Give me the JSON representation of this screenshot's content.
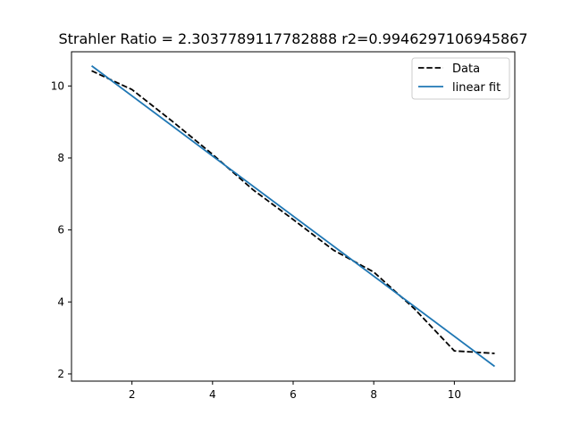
{
  "chart_data": {
    "type": "line",
    "title": "Strahler Ratio = 2.3037789117782888 r2=0.9946297106945867",
    "xlabel": "",
    "ylabel": "",
    "xlim": [
      0.5,
      11.5
    ],
    "ylim": [
      1.8,
      10.95
    ],
    "xticks": [
      2,
      4,
      6,
      8,
      10
    ],
    "yticks": [
      2,
      4,
      6,
      8,
      10
    ],
    "grid": false,
    "legend_position": "top-right",
    "series": [
      {
        "name": "Data",
        "style": "dashed",
        "color": "#000000",
        "x": [
          1,
          2,
          3,
          4,
          5,
          6,
          7,
          8,
          9,
          10,
          11
        ],
        "y": [
          10.42,
          9.9,
          9.02,
          8.1,
          7.12,
          6.29,
          5.44,
          4.83,
          3.82,
          2.64,
          2.57
        ]
      },
      {
        "name": "linear fit",
        "style": "solid",
        "color": "#1f77b4",
        "x": [
          1,
          11
        ],
        "y": [
          10.56,
          2.21
        ]
      }
    ]
  }
}
